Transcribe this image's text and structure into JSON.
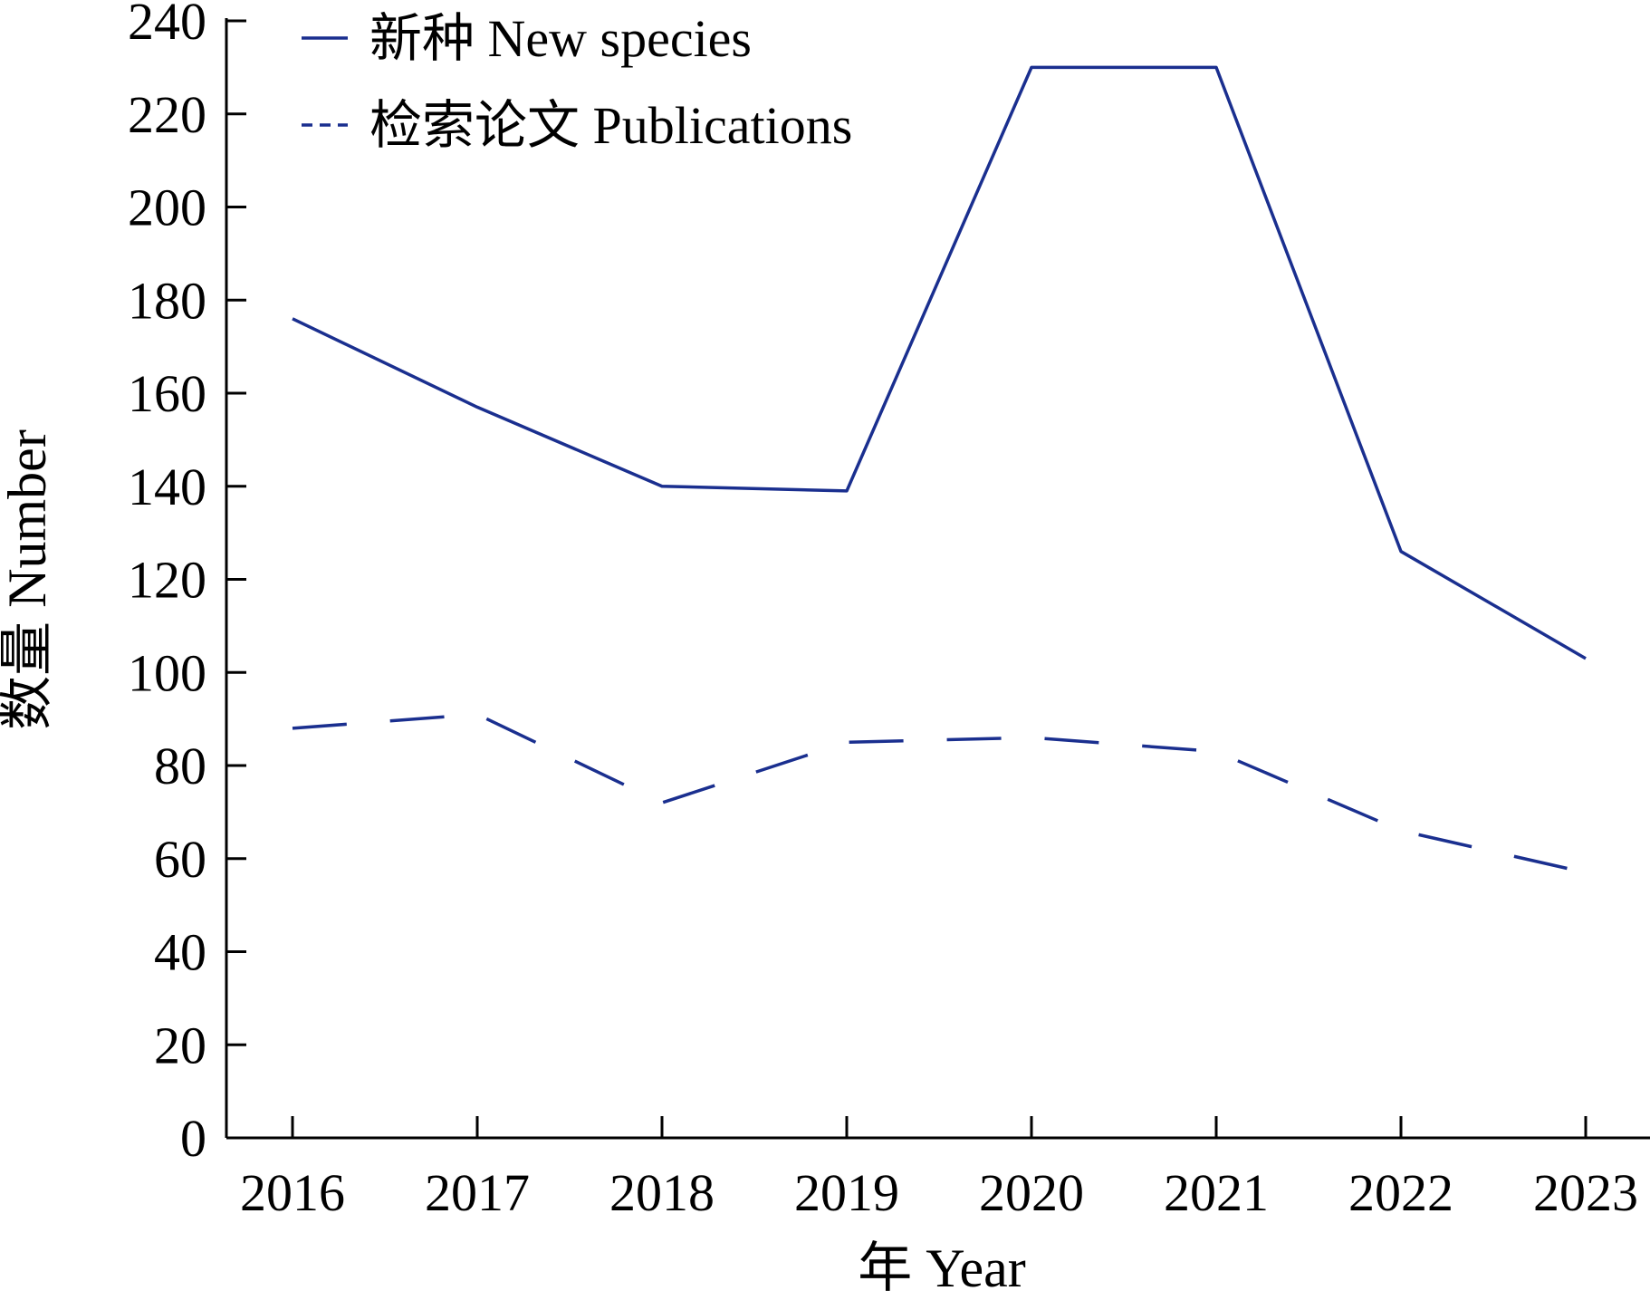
{
  "chart_data": {
    "type": "line",
    "title": "",
    "xlabel": "年 Year",
    "ylabel": "数量 Number",
    "categories": [
      "2016",
      "2017",
      "2018",
      "2019",
      "2020",
      "2021",
      "2022",
      "2023"
    ],
    "ylim": [
      0,
      240
    ],
    "yticks": [
      "0",
      "20",
      "40",
      "60",
      "80",
      "100",
      "120",
      "140",
      "160",
      "180",
      "200",
      "220",
      "240"
    ],
    "grid": false,
    "legend": "top-left",
    "series": [
      {
        "name": "新种 New species",
        "style": "solid",
        "color": "#1a2f8f",
        "values": [
          176,
          157,
          140,
          139,
          230,
          230,
          126,
          103
        ]
      },
      {
        "name": "检索论文 Publications",
        "style": "dashed",
        "color": "#1a2f8f",
        "values": [
          88,
          91,
          72,
          85,
          86,
          83,
          66,
          57
        ]
      }
    ]
  }
}
